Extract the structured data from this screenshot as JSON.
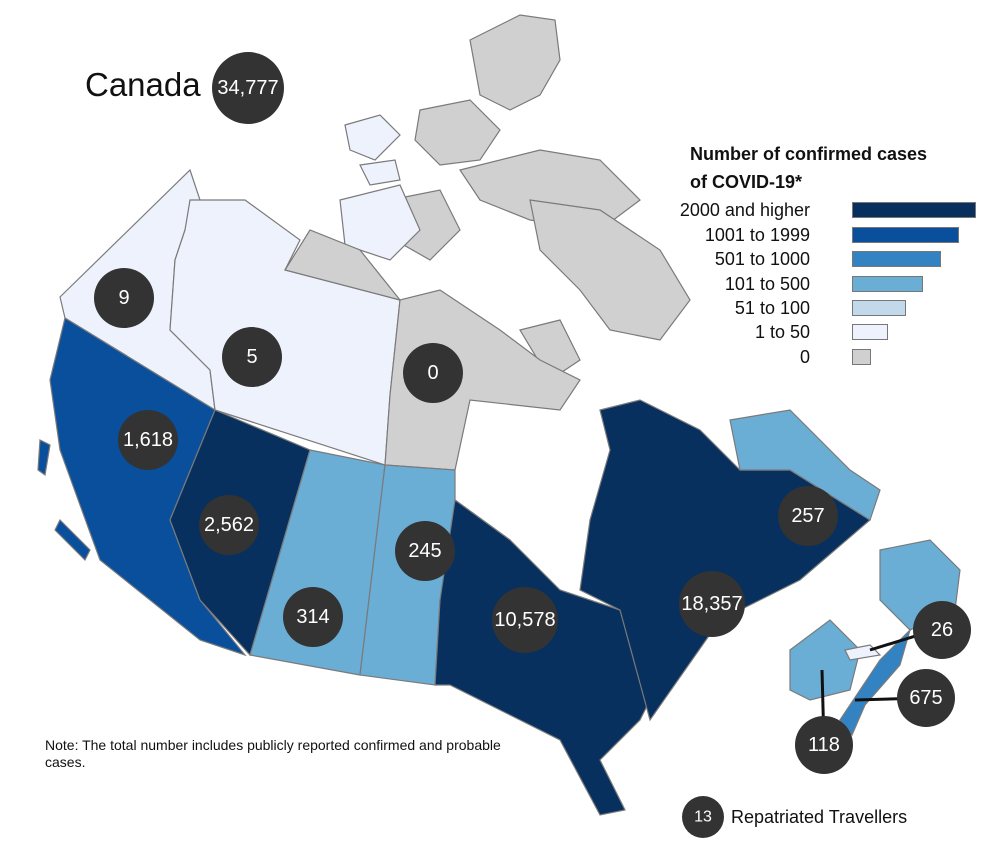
{
  "title": "Canada",
  "total": "34,777",
  "legend": {
    "title_line1": "Number of confirmed cases",
    "title_line2": "of COVID-19*",
    "items": [
      {
        "label": "2000 and higher",
        "color": "#08305e"
      },
      {
        "label": "1001 to 1999",
        "color": "#0a4f9c"
      },
      {
        "label": "501 to 1000",
        "color": "#3383c2"
      },
      {
        "label": "101 to 500",
        "color": "#6aaed6"
      },
      {
        "label": "51 to 100",
        "color": "#c2d8eb"
      },
      {
        "label": "1 to 50",
        "color": "#eef2fd"
      },
      {
        "label": "0",
        "color": "#d0d0d0"
      }
    ]
  },
  "regions": {
    "yukon": "9",
    "northwest_territories": "5",
    "nunavut": "0",
    "british_columbia": "1,618",
    "alberta": "2,562",
    "saskatchewan": "314",
    "manitoba": "245",
    "ontario": "10,578",
    "quebec": "18,357",
    "newfoundland_labrador": "257",
    "prince_edward_island": "26",
    "nova_scotia": "675",
    "new_brunswick": "118"
  },
  "repatriated": {
    "count": "13",
    "label": "Repatriated Travellers"
  },
  "note": "Note: The total number includes publicly reported confirmed and probable cases."
}
